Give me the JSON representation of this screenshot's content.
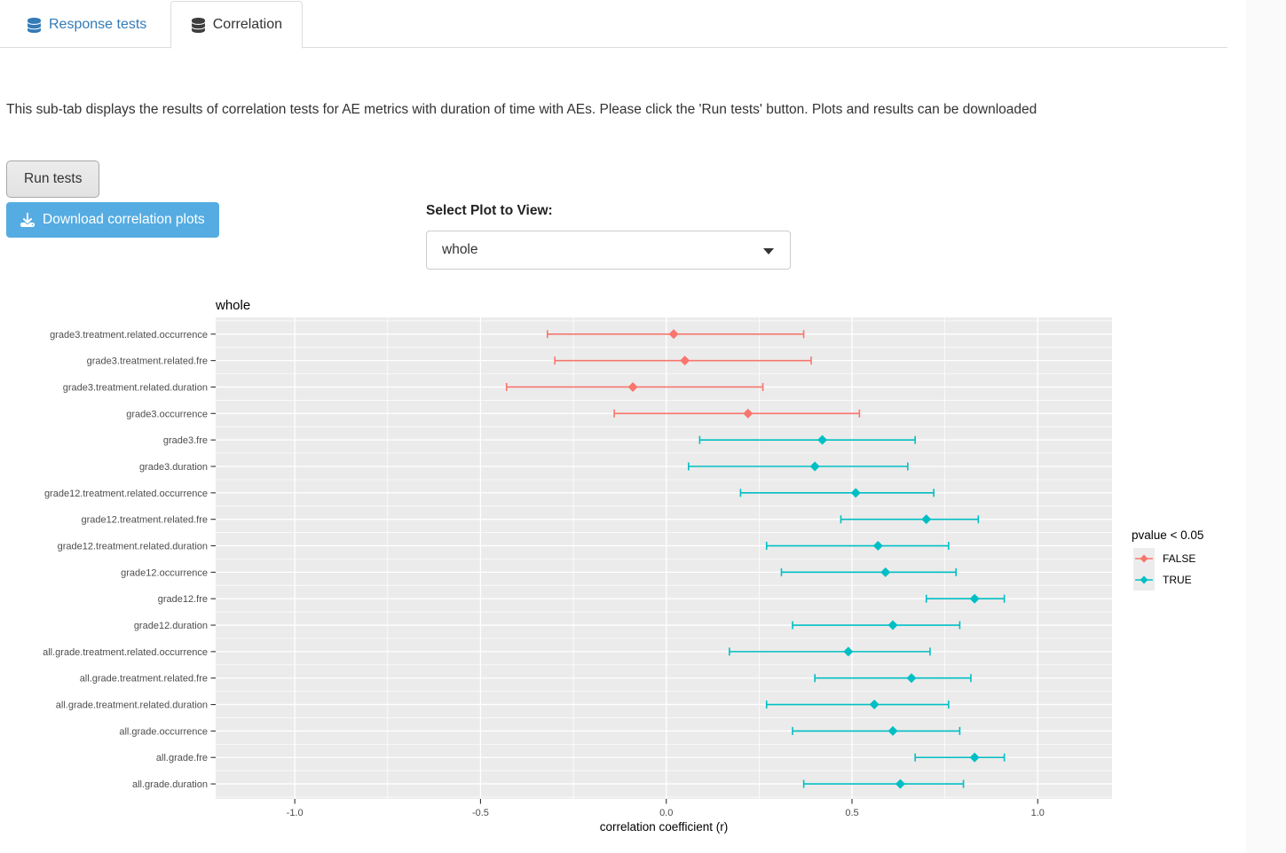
{
  "tabs": {
    "items": [
      {
        "label": "Response tests",
        "active": false
      },
      {
        "label": "Correlation",
        "active": true
      }
    ]
  },
  "description": "This sub-tab displays the results of correlation tests for AE metrics with duration of time with AEs. Please click the 'Run tests' button. Plots and results can be downloaded",
  "controls": {
    "run_tests_label": "Run tests",
    "download_label": "Download correlation plots",
    "select_label": "Select Plot to View:",
    "select_value": "whole"
  },
  "chart_data": {
    "type": "scatter",
    "subtype": "horizontal point estimates with error bars (correlation forest plot)",
    "title": "whole",
    "xlabel": "correlation coefficient (r)",
    "ylabel": "",
    "xlim": [
      -1.213,
      1.2
    ],
    "xticks": [
      -1.0,
      -0.5,
      0.0,
      0.5,
      1.0
    ],
    "xtick_labels": [
      "-1.0",
      "-0.5",
      "0.0",
      "0.5",
      "1.0"
    ],
    "grid": true,
    "legend": {
      "title": "pvalue < 0.05",
      "position": "right",
      "entries": [
        {
          "label": "FALSE",
          "color": "#F8766D"
        },
        {
          "label": "TRUE",
          "color": "#00BFC4"
        }
      ]
    },
    "points": [
      {
        "label": "grade3.treatment.related.occurrence",
        "r": 0.02,
        "lower": -0.32,
        "upper": 0.37,
        "significant": false
      },
      {
        "label": "grade3.treatment.related.fre",
        "r": 0.05,
        "lower": -0.3,
        "upper": 0.39,
        "significant": false
      },
      {
        "label": "grade3.treatment.related.duration",
        "r": -0.09,
        "lower": -0.43,
        "upper": 0.26,
        "significant": false
      },
      {
        "label": "grade3.occurrence",
        "r": 0.22,
        "lower": -0.14,
        "upper": 0.52,
        "significant": false
      },
      {
        "label": "grade3.fre",
        "r": 0.42,
        "lower": 0.09,
        "upper": 0.67,
        "significant": true
      },
      {
        "label": "grade3.duration",
        "r": 0.4,
        "lower": 0.06,
        "upper": 0.65,
        "significant": true
      },
      {
        "label": "grade12.treatment.related.occurrence",
        "r": 0.51,
        "lower": 0.2,
        "upper": 0.72,
        "significant": true
      },
      {
        "label": "grade12.treatment.related.fre",
        "r": 0.7,
        "lower": 0.47,
        "upper": 0.84,
        "significant": true
      },
      {
        "label": "grade12.treatment.related.duration",
        "r": 0.57,
        "lower": 0.27,
        "upper": 0.76,
        "significant": true
      },
      {
        "label": "grade12.occurrence",
        "r": 0.59,
        "lower": 0.31,
        "upper": 0.78,
        "significant": true
      },
      {
        "label": "grade12.fre",
        "r": 0.83,
        "lower": 0.7,
        "upper": 0.91,
        "significant": true
      },
      {
        "label": "grade12.duration",
        "r": 0.61,
        "lower": 0.34,
        "upper": 0.79,
        "significant": true
      },
      {
        "label": "all.grade.treatment.related.occurrence",
        "r": 0.49,
        "lower": 0.17,
        "upper": 0.71,
        "significant": true
      },
      {
        "label": "all.grade.treatment.related.fre",
        "r": 0.66,
        "lower": 0.4,
        "upper": 0.82,
        "significant": true
      },
      {
        "label": "all.grade.treatment.related.duration",
        "r": 0.56,
        "lower": 0.27,
        "upper": 0.76,
        "significant": true
      },
      {
        "label": "all.grade.occurrence",
        "r": 0.61,
        "lower": 0.34,
        "upper": 0.79,
        "significant": true
      },
      {
        "label": "all.grade.fre",
        "r": 0.83,
        "lower": 0.67,
        "upper": 0.91,
        "significant": true
      },
      {
        "label": "all.grade.duration",
        "r": 0.63,
        "lower": 0.37,
        "upper": 0.8,
        "significant": true
      }
    ]
  },
  "colors": {
    "false_color": "#F8766D",
    "true_color": "#00BFC4",
    "panel_bg": "#EBEBEB",
    "grid_color": "#FFFFFF",
    "axis_text": "#4D4D4D",
    "legend_key_bg": "#ECECEC",
    "download_button": "#55ACE2",
    "link_blue": "#337AB7"
  }
}
